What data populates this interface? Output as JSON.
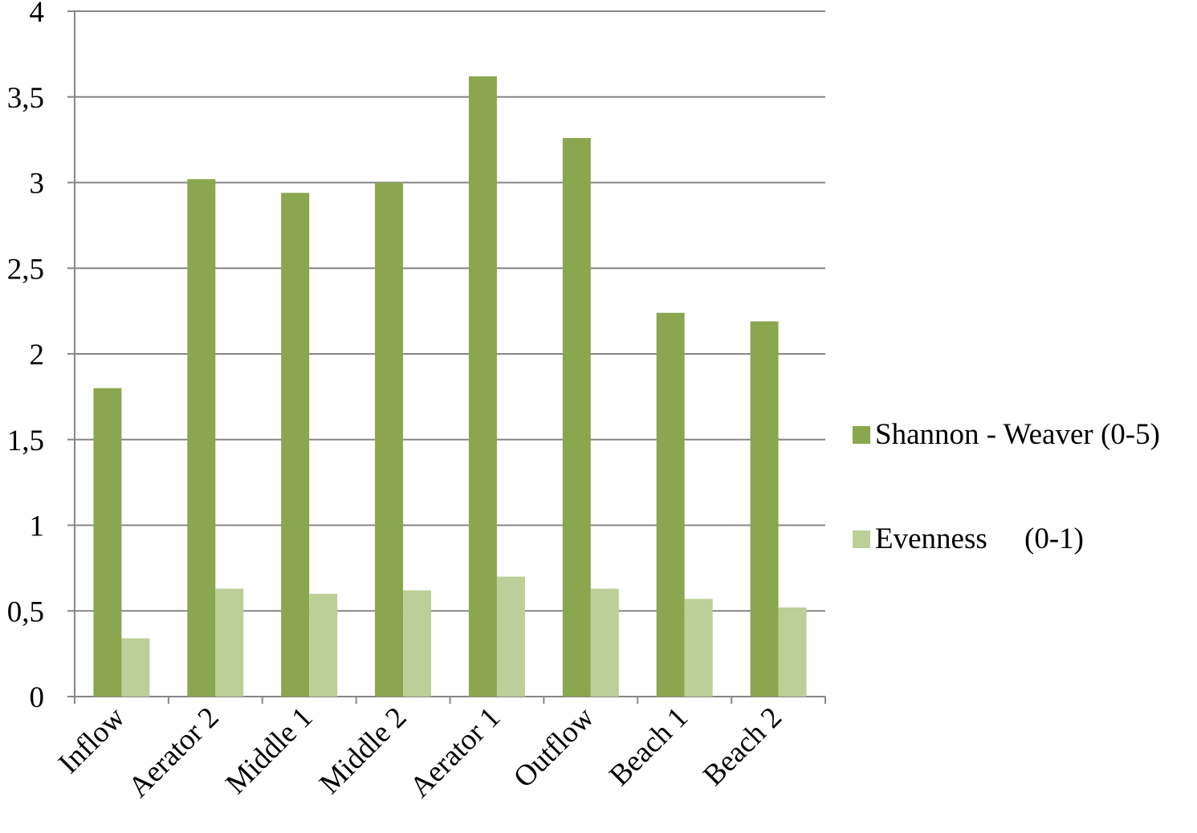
{
  "chart_data": {
    "type": "bar",
    "title": "",
    "xlabel": "",
    "ylabel": "",
    "categories": [
      "Inflow",
      "Aerator 2",
      "Middle 1",
      "Middle 2",
      "Aerator 1",
      "Outflow",
      "Beach 1",
      "Beach 2"
    ],
    "series": [
      {
        "name": "Shannon - Weaver (0-5)",
        "color": "#8aa64e",
        "values": [
          1.8,
          3.02,
          2.94,
          3.0,
          3.62,
          3.26,
          2.24,
          2.19
        ]
      },
      {
        "name": "Evenness     (0-1)",
        "color": "#bccf98",
        "values": [
          0.34,
          0.63,
          0.6,
          0.62,
          0.7,
          0.63,
          0.57,
          0.52
        ]
      }
    ],
    "ylim": [
      0,
      4
    ],
    "yticks": [
      "0",
      "0,5",
      "1",
      "1,5",
      "2",
      "2,5",
      "3",
      "3,5",
      "4"
    ],
    "grid": true,
    "legend_position": "right"
  }
}
